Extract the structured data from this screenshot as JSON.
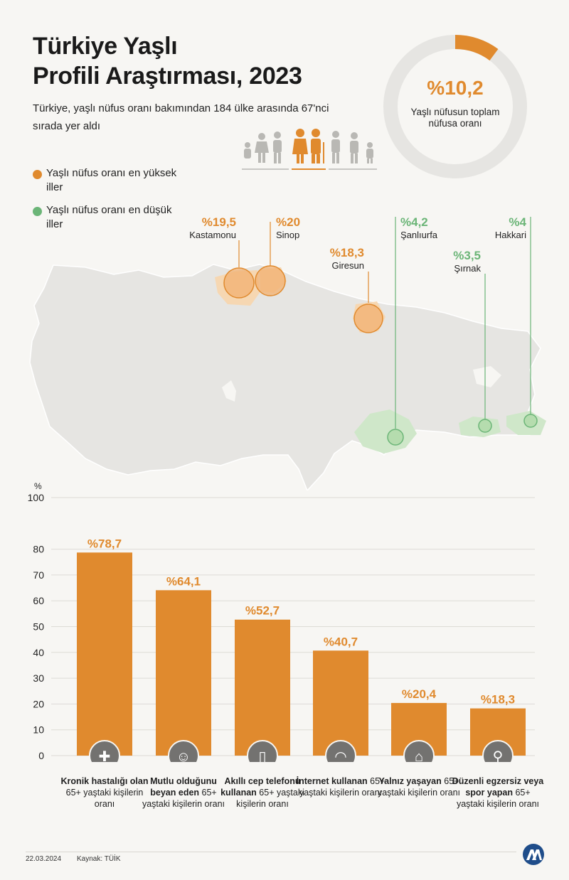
{
  "header": {
    "title_line1": "Türkiye Yaşlı",
    "title_line2": "Profili Araştırması, 2023",
    "subtitle": "Türkiye, yaşlı nüfus oranı bakımından 184 ülke arasında 67'nci sırada yer aldı"
  },
  "donut": {
    "value_label": "%10,2",
    "value": 10.2,
    "label": "Yaşlı nüfusun toplam nüfusa oranı"
  },
  "colors": {
    "orange": "#e08a2e",
    "green": "#6bb577",
    "map_land": "#e6e5e2",
    "grid": "#dddbd6"
  },
  "legend": {
    "high_label": "Yaşlı nüfus oranı en yüksek iller",
    "low_label": "Yaşlı nüfus oranı en düşük iller"
  },
  "map": {
    "high_cities": [
      {
        "value": "%19,5",
        "name": "Kastamonu"
      },
      {
        "value": "%20",
        "name": "Sinop"
      },
      {
        "value": "%18,3",
        "name": "Giresun"
      }
    ],
    "low_cities": [
      {
        "value": "%4,2",
        "name": "Şanlıurfa"
      },
      {
        "value": "%3,5",
        "name": "Şırnak"
      },
      {
        "value": "%4",
        "name": "Hakkari"
      }
    ]
  },
  "chart_data": {
    "type": "bar",
    "ylabel": "%",
    "ylim": [
      0,
      100
    ],
    "yticks": [
      0,
      10,
      20,
      30,
      40,
      50,
      60,
      70,
      80,
      100
    ],
    "grid": true,
    "categories": [
      "Kronik hastalığı olan 65+ yaştaki kişilerin oranı",
      "Mutlu olduğunu beyan eden 65+ yaştaki kişilerin oranı",
      "Akıllı cep telefonu kullanan 65+ yaştaki kişilerin oranı",
      "İnternet kullanan 65+ yaştaki kişilerin oranı",
      "Yalnız yaşayan 65+ yaştaki kişilerin oranı",
      "Düzenli egzersiz veya spor yapan 65+ yaştaki kişilerin oranı"
    ],
    "values": [
      78.7,
      64.1,
      52.7,
      40.7,
      20.4,
      18.3
    ],
    "value_labels": [
      "%78,7",
      "%64,1",
      "%52,7",
      "%40,7",
      "%20,4",
      "%18,3"
    ],
    "labels": [
      {
        "bold": "Kronik hastalığı olan",
        "rest": "65+ yaştaki kişilerin oranı",
        "icon": "medical-cross-icon"
      },
      {
        "bold": "Mutlu olduğunu beyan eden",
        "rest": "65+ yaştaki kişilerin oranı",
        "icon": "happy-couple-icon"
      },
      {
        "bold": "Akıllı cep telefonu kullanan",
        "rest": "65+ yaştaki kişilerin oranı",
        "icon": "smartphone-icon"
      },
      {
        "bold": "İnternet kullanan",
        "rest": "65+ yaştaki kişilerin oranı",
        "icon": "wifi-icon"
      },
      {
        "bold": "Yalnız yaşayan",
        "rest": "65+ yaştaki kişilerin oranı",
        "icon": "house-elder-icon"
      },
      {
        "bold": "Düzenli egzersiz veya spor yapan",
        "rest": "65+ yaştaki kişilerin oranı",
        "icon": "runner-icon"
      }
    ]
  },
  "footer": {
    "date": "22.03.2024",
    "source": "Kaynak: TÜİK"
  }
}
